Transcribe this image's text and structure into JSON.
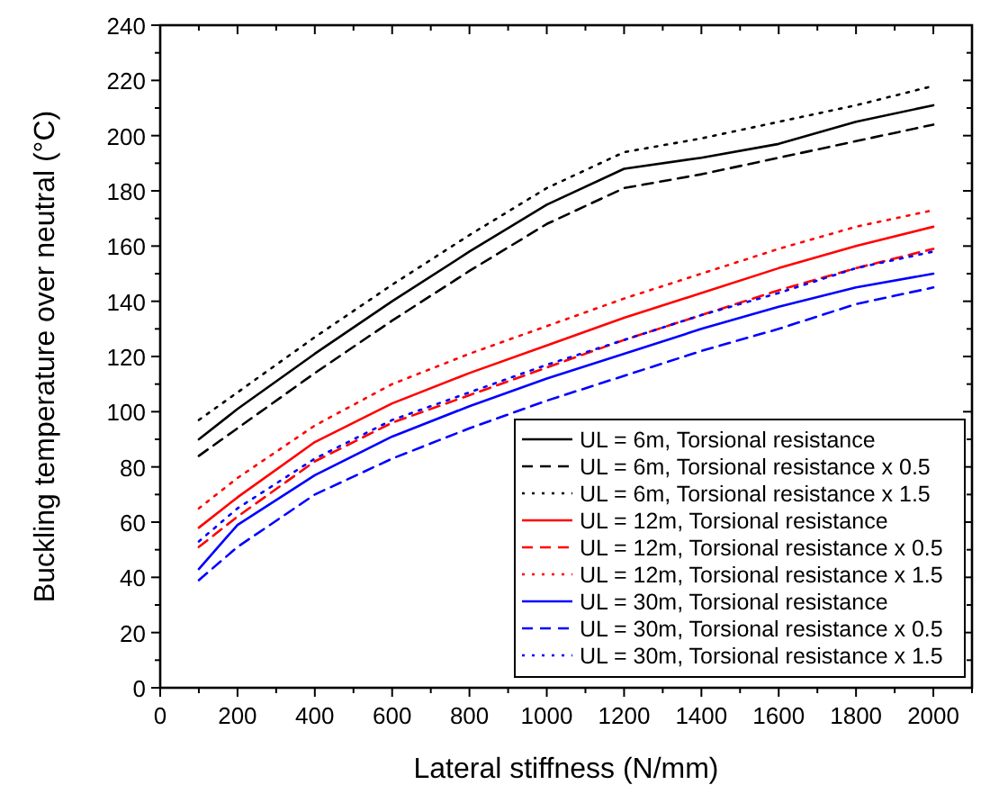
{
  "chart_data": {
    "type": "line",
    "xlabel": "Lateral stiffness (N/mm)",
    "ylabel": "Buckling temperature over neutral (°C)",
    "x": [
      100,
      200,
      400,
      600,
      800,
      1000,
      1200,
      1400,
      1600,
      1800,
      2000
    ],
    "xlim": [
      0,
      2100
    ],
    "xticks": [
      0,
      200,
      400,
      600,
      800,
      1000,
      1200,
      1400,
      1600,
      1800,
      2000
    ],
    "ylim": [
      0,
      240
    ],
    "yticks": [
      0,
      20,
      40,
      60,
      80,
      100,
      120,
      140,
      160,
      180,
      200,
      220,
      240
    ],
    "grid": false,
    "legend": "bottom right",
    "marker": "none",
    "series": [
      {
        "name": "UL = 6m, Torsional resistance",
        "color": "#000000",
        "line_style": "solid",
        "values": [
          90,
          101,
          121,
          140,
          158,
          175,
          188,
          192,
          197,
          205,
          211
        ]
      },
      {
        "name": "UL = 6m, Torsional resistance x 0.5",
        "color": "#000000",
        "line_style": "dashed",
        "values": [
          84,
          94,
          114,
          133,
          151,
          168,
          181,
          186,
          192,
          198,
          204
        ]
      },
      {
        "name": "UL = 6m, Torsional resistance x 1.5",
        "color": "#000000",
        "line_style": "dotted",
        "values": [
          97,
          107,
          127,
          146,
          164,
          181,
          194,
          199,
          205,
          211,
          218
        ]
      },
      {
        "name": "UL = 12m, Torsional resistance",
        "color": "#ff0000",
        "line_style": "solid",
        "values": [
          58,
          69,
          89,
          103,
          114,
          124,
          134,
          143,
          152,
          160,
          167
        ]
      },
      {
        "name": "UL = 12m, Torsional resistance x 0.5",
        "color": "#ff0000",
        "line_style": "dashed",
        "values": [
          51,
          62,
          82,
          96,
          106,
          116,
          126,
          135,
          144,
          152,
          159
        ]
      },
      {
        "name": "UL = 12m, Torsional resistance x 1.5",
        "color": "#ff0000",
        "line_style": "dotted",
        "values": [
          65,
          76,
          95,
          110,
          121,
          131,
          141,
          150,
          159,
          167,
          173
        ]
      },
      {
        "name": "UL = 30m, Torsional resistance",
        "color": "#0000ff",
        "line_style": "solid",
        "values": [
          43,
          59,
          77,
          91,
          102,
          112,
          121,
          130,
          138,
          145,
          150
        ]
      },
      {
        "name": "UL = 30m, Torsional resistance x 0.5",
        "color": "#0000ff",
        "line_style": "dashed",
        "values": [
          39,
          51,
          70,
          83,
          94,
          104,
          113,
          122,
          130,
          139,
          145
        ]
      },
      {
        "name": "UL = 30m, Torsional resistance x 1.5",
        "color": "#0000ff",
        "line_style": "dotted",
        "values": [
          53,
          65,
          83,
          97,
          107,
          117,
          126,
          135,
          143,
          152,
          158
        ]
      }
    ]
  }
}
